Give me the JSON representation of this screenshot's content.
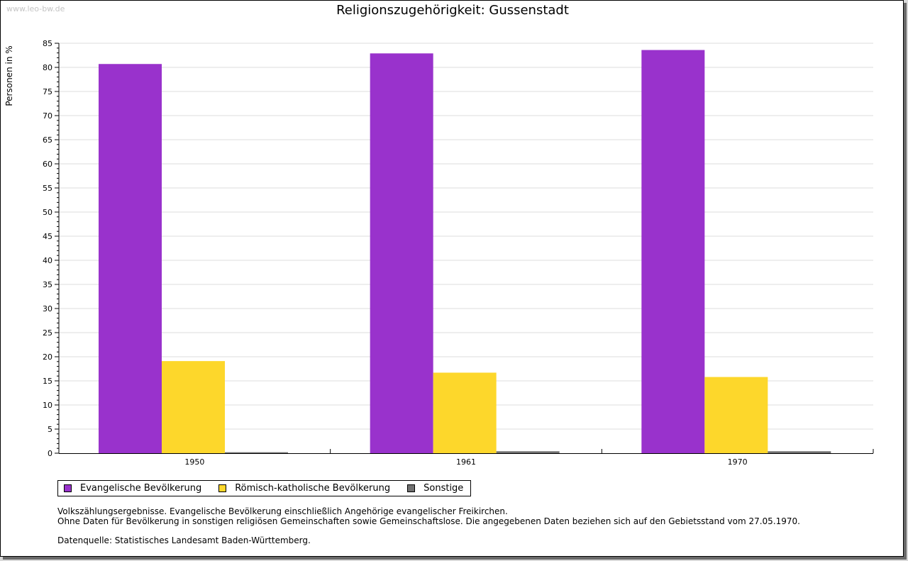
{
  "watermark": "www.leo-bw.de",
  "colors": {
    "evangelisch": "#9932cc",
    "katholisch": "#fdd72b",
    "sonstige": "#707070",
    "grid": "#dddddd",
    "axis": "#000000"
  },
  "chart_data": {
    "type": "bar",
    "title": "Religionszugehörigkeit: Gussenstadt",
    "ylabel": "Personen in %",
    "xlabel": "",
    "ylim": [
      0,
      85
    ],
    "ytick_step": 5,
    "grid": true,
    "legend_position": "bottom-left",
    "categories": [
      "1950",
      "1961",
      "1970"
    ],
    "series": [
      {
        "name": "Evangelische Bevölkerung",
        "color_key": "evangelisch",
        "values": [
          80.7,
          82.9,
          83.6
        ]
      },
      {
        "name": "Römisch-katholische Bevölkerung",
        "color_key": "katholisch",
        "values": [
          19.1,
          16.7,
          15.8
        ]
      },
      {
        "name": "Sonstige",
        "color_key": "sonstige",
        "values": [
          0.2,
          0.4,
          0.4
        ]
      }
    ]
  },
  "notes": {
    "line1": "Volkszählungsergebnisse. Evangelische Bevölkerung einschließlich Angehörige evangelischer Freikirchen.",
    "line2": "Ohne Daten für Bevölkerung in sonstigen religiösen Gemeinschaften sowie Gemeinschaftslose. Die angegebenen Daten beziehen sich auf den Gebietsstand vom 27.05.1970.",
    "source": "Datenquelle: Statistisches Landesamt Baden-Württemberg."
  }
}
